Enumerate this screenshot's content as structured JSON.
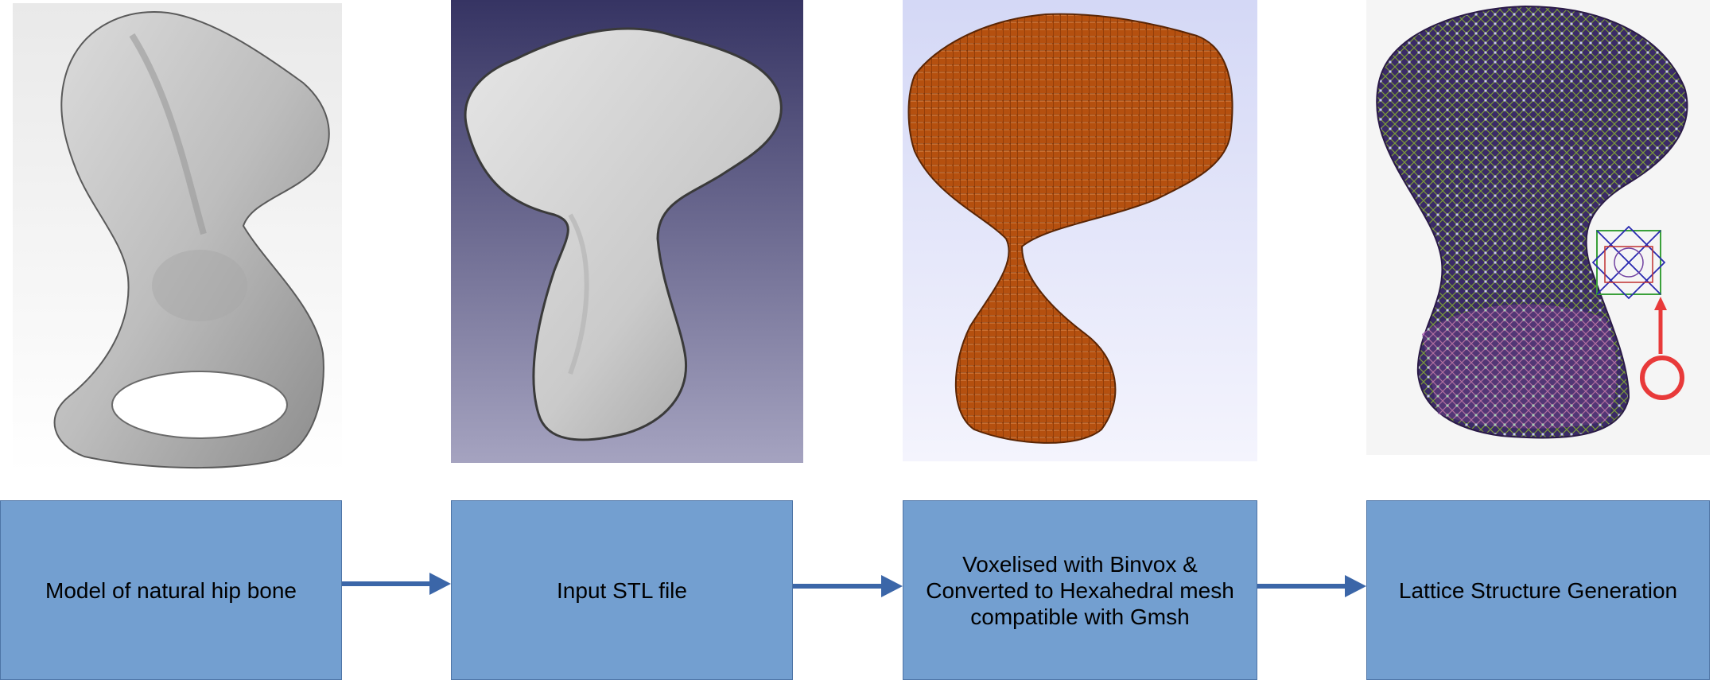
{
  "steps": [
    {
      "label": "Model of natural hip bone"
    },
    {
      "label": "Input STL file"
    },
    {
      "label": "Voxelised with Binvox &\nConverted to Hexahedral mesh\ncompatible with Gmsh"
    },
    {
      "label": "Lattice Structure Generation"
    }
  ],
  "colors": {
    "box_fill": "#739fd0",
    "box_border": "#4d74a6",
    "arrow": "#3b66a8",
    "voxel": "#b5500f",
    "lattice": "#3a2a66",
    "highlight_circle": "#e83a3a"
  },
  "icons": [
    "hip-bone-grey-render",
    "hip-bone-stl-render",
    "hip-bone-voxel-render",
    "hip-bone-lattice-render",
    "unit-cell-icon"
  ]
}
